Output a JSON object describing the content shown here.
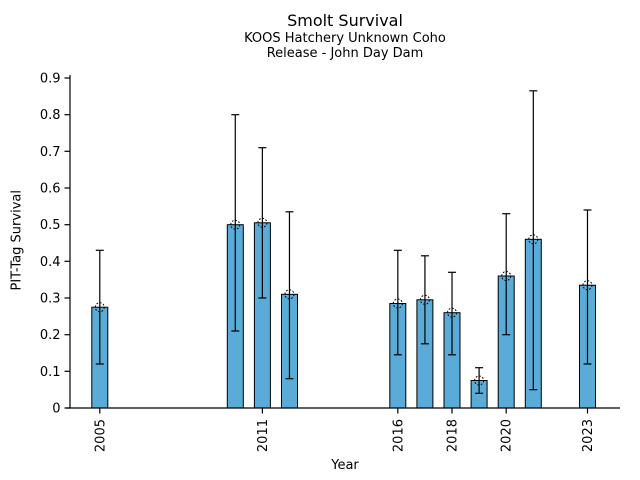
{
  "figure": {
    "background": "#FFFFFF"
  },
  "chart_data": {
    "type": "bar",
    "title": "Smolt Survival",
    "subtitle": [
      "KOOS Hatchery Unknown Coho",
      "Release - John Day Dam"
    ],
    "xlabel": "Year",
    "ylabel": "PIT-Tag Survival",
    "ylim": [
      0,
      0.9
    ],
    "yticks": [
      0,
      0.1,
      0.2,
      0.3,
      0.4,
      0.5,
      0.6,
      0.7,
      0.8,
      0.9
    ],
    "ytick_labels": [
      "0",
      "0.1",
      "0.2",
      "0.3",
      "0.4",
      "0.5",
      "0.6",
      "0.7",
      "0.8",
      "0.9"
    ],
    "xlim": [
      2003.9,
      2024.2
    ],
    "xticks": [
      2005,
      2011,
      2016,
      2018,
      2020,
      2023
    ],
    "grid": false,
    "legend": null,
    "bar_color": "#5BABD8",
    "edge_color": "#000000",
    "error_bar_color": "#000000",
    "marker": "dotted-open-circle",
    "series": [
      {
        "name": "PIT-Tag Survival with error bars",
        "points": [
          {
            "year": 2005,
            "value": 0.275,
            "err_low": 0.12,
            "err_high": 0.43
          },
          {
            "year": 2010,
            "value": 0.5,
            "err_low": 0.21,
            "err_high": 0.8
          },
          {
            "year": 2011,
            "value": 0.505,
            "err_low": 0.3,
            "err_high": 0.71
          },
          {
            "year": 2012,
            "value": 0.31,
            "err_low": 0.08,
            "err_high": 0.535
          },
          {
            "year": 2016,
            "value": 0.285,
            "err_low": 0.145,
            "err_high": 0.43
          },
          {
            "year": 2017,
            "value": 0.295,
            "err_low": 0.175,
            "err_high": 0.415
          },
          {
            "year": 2018,
            "value": 0.26,
            "err_low": 0.145,
            "err_high": 0.37
          },
          {
            "year": 2019,
            "value": 0.075,
            "err_low": 0.04,
            "err_high": 0.11
          },
          {
            "year": 2020,
            "value": 0.36,
            "err_low": 0.2,
            "err_high": 0.53
          },
          {
            "year": 2021,
            "value": 0.46,
            "err_low": 0.05,
            "err_high": 0.865
          },
          {
            "year": 2023,
            "value": 0.335,
            "err_low": 0.12,
            "err_high": 0.54
          }
        ]
      }
    ]
  }
}
